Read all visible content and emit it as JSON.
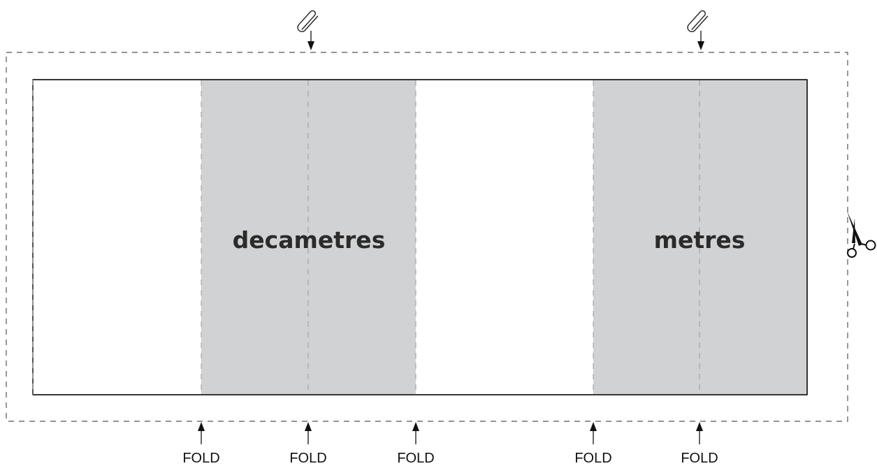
{
  "panels": {
    "left_label": "decametres",
    "right_label": "metres"
  },
  "fold_labels": [
    "FOLD",
    "FOLD",
    "FOLD",
    "FOLD",
    "FOLD"
  ],
  "icons": {
    "clip": "paperclip-icon",
    "cut": "scissors-icon"
  },
  "colors": {
    "shaded": "#d1d2d4",
    "outline": "#1a1a1a",
    "dashed": "#555555",
    "fold_line": "#9a9a9a"
  }
}
